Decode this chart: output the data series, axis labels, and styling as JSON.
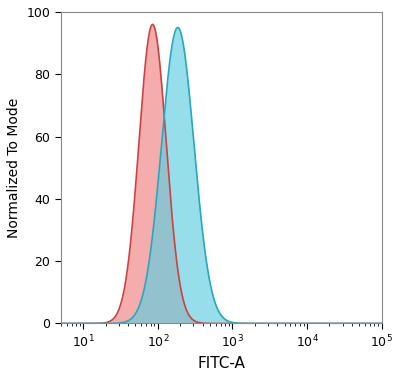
{
  "title": "",
  "xlabel": "FITC-A",
  "ylabel": "Normalized To Mode",
  "xlim": [
    5,
    100000
  ],
  "ylim": [
    0,
    100
  ],
  "yticks": [
    0,
    20,
    40,
    60,
    80,
    100
  ],
  "red_peak": 85,
  "red_sigma": 0.42,
  "red_height": 96,
  "blue_peak": 185,
  "blue_sigma": 0.5,
  "blue_height": 95,
  "red_fill_color": "#F08080",
  "red_line_color": "#D04040",
  "blue_fill_color": "#5ECFDF",
  "blue_line_color": "#25A8C0",
  "red_alpha": 0.65,
  "blue_alpha": 0.65,
  "background_color": "#ffffff",
  "fig_width": 4.0,
  "fig_height": 3.78
}
